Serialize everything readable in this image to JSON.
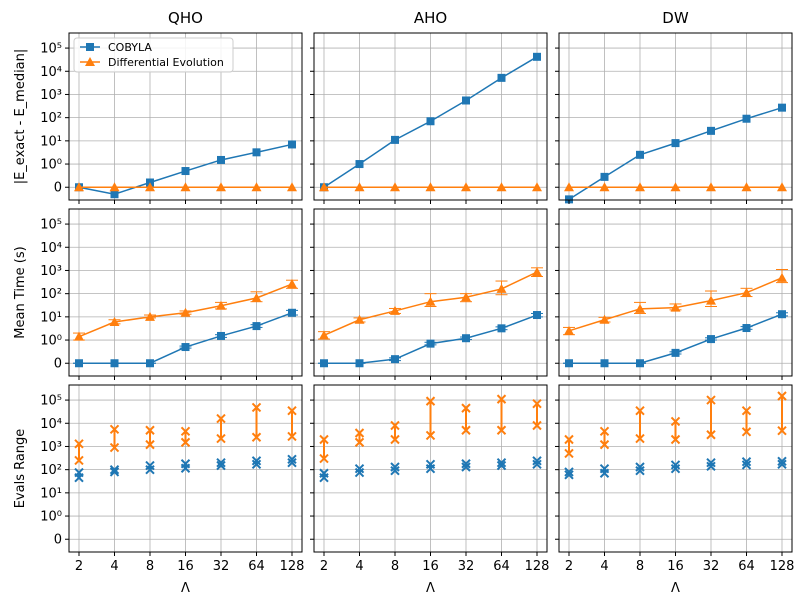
{
  "colors": {
    "cobyla": "#1f77b4",
    "de": "#ff7f0e",
    "grid": "#b0b0b0"
  },
  "chart_data": {
    "type": "line",
    "layout": "grid 3 rows x 3 columns, shared x and y axes",
    "columns": [
      "QHO",
      "AHO",
      "DW"
    ],
    "x": [
      2,
      4,
      8,
      16,
      32,
      64,
      128
    ],
    "x_tick_labels": [
      "2",
      "4",
      "8",
      "16",
      "32",
      "64",
      "128"
    ],
    "xlabel": "Λ",
    "x_scale": "log2",
    "y_scale": "symlog",
    "y_ticks": [
      {
        "value": 0,
        "label": "0"
      },
      {
        "value": 1,
        "label": "10⁰"
      },
      {
        "value": 10,
        "label": "10¹"
      },
      {
        "value": 100,
        "label": "10²"
      },
      {
        "value": 1000,
        "label": "10³"
      },
      {
        "value": 10000,
        "label": "10⁴"
      },
      {
        "value": 100000,
        "label": "10⁵"
      }
    ],
    "ylim_log10": [
      -1.55,
      5.65
    ],
    "grid": true,
    "legend": {
      "placement": "top-left of first panel",
      "entries": [
        {
          "name": "COBYLA",
          "marker": "square",
          "color": "#1f77b4"
        },
        {
          "name": "Differential Evolution",
          "marker": "triangle",
          "color": "#ff7f0e"
        }
      ]
    },
    "rows": [
      {
        "ylabel": "|E_exact - E_median|",
        "kind": "line",
        "panels": [
          {
            "title": "QHO",
            "series": [
              {
                "name": "COBYLA",
                "values": [
                  0,
                  0.05,
                  0.16,
                  0.5,
                  1.5,
                  3.2,
                  7
                ]
              },
              {
                "name": "Differential Evolution",
                "values": [
                  0,
                  0,
                  0,
                  0,
                  0,
                  0,
                  0
                ]
              }
            ]
          },
          {
            "title": "AHO",
            "series": [
              {
                "name": "COBYLA",
                "values": [
                  0,
                  1,
                  11,
                  70,
                  550,
                  5200,
                  42000
                ]
              },
              {
                "name": "Differential Evolution",
                "values": [
                  0,
                  0,
                  0,
                  0,
                  0,
                  0,
                  0
                ]
              }
            ]
          },
          {
            "title": "DW",
            "series": [
              {
                "name": "COBYLA",
                "values": [
                  0.03,
                  0.28,
                  2.5,
                  8,
                  27,
                  90,
                  270
                ]
              },
              {
                "name": "Differential Evolution",
                "values": [
                  0,
                  0,
                  0,
                  0,
                  0,
                  0,
                  0
                ]
              }
            ]
          }
        ]
      },
      {
        "ylabel": "Mean Time (s)",
        "kind": "line_with_errorbars",
        "panels": [
          {
            "series": [
              {
                "name": "COBYLA",
                "values": [
                  0,
                  0,
                  0,
                  0.5,
                  1.5,
                  4,
                  15
                ],
                "err_low": [
                  0,
                  0,
                  0,
                  0.45,
                  1.3,
                  3.5,
                  12
                ],
                "err_high": [
                  0,
                  0,
                  0,
                  0.55,
                  1.7,
                  4.6,
                  19
                ]
              },
              {
                "name": "Differential Evolution",
                "values": [
                  1.4,
                  6,
                  10,
                  15,
                  30,
                  65,
                  260
                ],
                "err_low": [
                  1,
                  5,
                  9,
                  13,
                  22,
                  45,
                  170
                ],
                "err_high": [
                  2,
                  7.5,
                  12,
                  18,
                  42,
                  120,
                  380
                ]
              }
            ]
          },
          {
            "series": [
              {
                "name": "COBYLA",
                "values": [
                  0,
                  0,
                  0.15,
                  0.7,
                  1.2,
                  3.2,
                  12
                ],
                "err_low": [
                  0,
                  0,
                  0.13,
                  0.62,
                  1.05,
                  2.8,
                  10
                ],
                "err_high": [
                  0,
                  0,
                  0.17,
                  0.8,
                  1.35,
                  3.7,
                  14
                ]
              },
              {
                "name": "Differential Evolution",
                "values": [
                  1.6,
                  7.5,
                  18,
                  45,
                  70,
                  160,
                  850
                ],
                "err_low": [
                  1.1,
                  6,
                  14,
                  28,
                  45,
                  90,
                  550
                ],
                "err_high": [
                  2.3,
                  9,
                  23,
                  100,
                  100,
                  350,
                  1300
                ]
              }
            ]
          },
          {
            "series": [
              {
                "name": "COBYLA",
                "values": [
                  0,
                  0,
                  0,
                  0.28,
                  1.1,
                  3.3,
                  13
                ],
                "err_low": [
                  0,
                  0,
                  0,
                  0.25,
                  1,
                  2.9,
                  11
                ],
                "err_high": [
                  0,
                  0,
                  0,
                  0.31,
                  1.25,
                  3.8,
                  15
                ]
              },
              {
                "name": "Differential Evolution",
                "values": [
                  2.5,
                  7.5,
                  22,
                  25,
                  50,
                  110,
                  480
                ],
                "err_low": [
                  1.7,
                  6,
                  14,
                  20,
                  28,
                  75,
                  300
                ],
                "err_high": [
                  3.5,
                  9.5,
                  42,
                  36,
                  130,
                  170,
                  1100
                ]
              }
            ]
          }
        ]
      },
      {
        "ylabel": "Evals Range",
        "kind": "min_max_range",
        "panels": [
          {
            "series": [
              {
                "name": "COBYLA",
                "min": [
                  45,
                  80,
                  100,
                  115,
                  150,
                  170,
                  200
                ],
                "max": [
                  75,
                  100,
                  150,
                  180,
                  200,
                  240,
                  280
                ]
              },
              {
                "name": "Differential Evolution",
                "min": [
                  250,
                  900,
                  1200,
                  1500,
                  2200,
                  2500,
                  2700
                ],
                "max": [
                  1300,
                  5500,
                  5000,
                  4500,
                  16000,
                  48000,
                  35000
                ]
              }
            ]
          },
          {
            "series": [
              {
                "name": "COBYLA",
                "min": [
                  45,
                  75,
                  90,
                  110,
                  130,
                  150,
                  170
                ],
                "max": [
                  70,
                  110,
                  130,
                  170,
                  180,
                  200,
                  240
                ]
              },
              {
                "name": "Differential Evolution",
                "min": [
                  300,
                  1500,
                  2000,
                  3000,
                  5000,
                  5000,
                  8000
                ],
                "max": [
                  2000,
                  3800,
                  8000,
                  90000,
                  45000,
                  110000,
                  70000
                ]
              }
            ]
          },
          {
            "series": [
              {
                "name": "COBYLA",
                "min": [
                  60,
                  70,
                  90,
                  110,
                  140,
                  160,
                  170
                ],
                "max": [
                  80,
                  110,
                  130,
                  160,
                  200,
                  220,
                  230
                ]
              },
              {
                "name": "Differential Evolution",
                "min": [
                  500,
                  1200,
                  2200,
                  2000,
                  3200,
                  4300,
                  4800
                ],
                "max": [
                  2000,
                  4500,
                  35000,
                  12000,
                  100000,
                  35000,
                  150000
                ]
              }
            ]
          }
        ]
      }
    ]
  }
}
